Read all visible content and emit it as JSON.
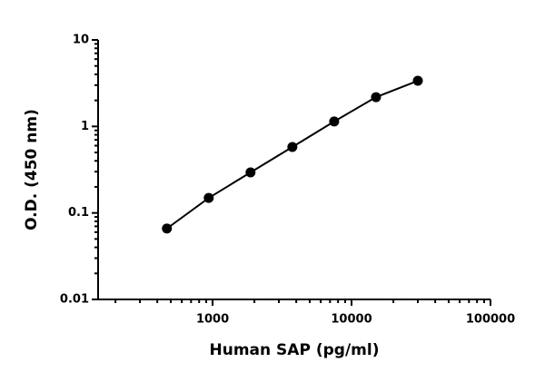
{
  "chart_data": {
    "type": "scatter",
    "x_label": "Human SAP (pg/ml)",
    "y_label": "O.D. (450 nm)",
    "x": [
      469,
      938,
      1875,
      3750,
      7500,
      15000,
      30000
    ],
    "series": [
      {
        "color": "#000000",
        "values": [
          0.066,
          0.149,
          0.294,
          0.578,
          1.14,
          2.18,
          3.37
        ]
      }
    ],
    "fit_line": true,
    "log_x": true,
    "log_y": true,
    "xlim": [
      150,
      100000
    ],
    "ylim": [
      0.01,
      10
    ],
    "xticks": [
      1000,
      10000,
      100000
    ],
    "yticks": [
      0.01,
      0.1,
      1,
      10
    ]
  }
}
